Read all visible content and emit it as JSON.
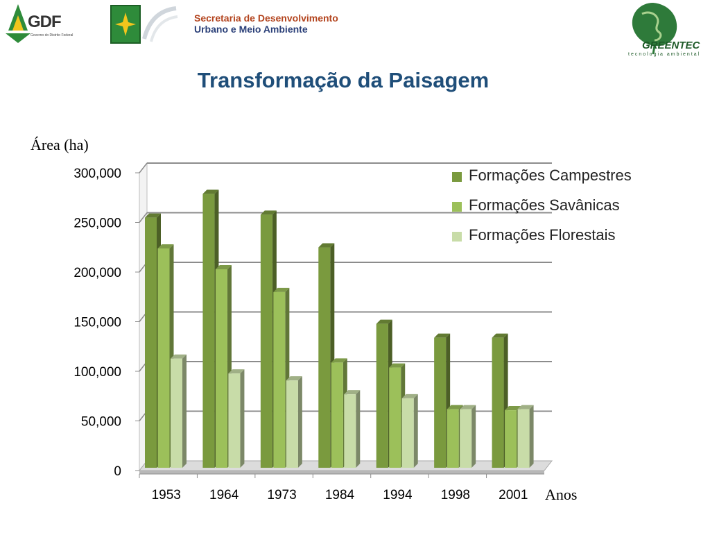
{
  "header": {
    "gdf_logo_text": "GDF",
    "gdf_logo_subtext": "Governo do Distrito Federal",
    "secretaria_line1": "Secretaria de  Desenvolvimento",
    "secretaria_line2": "Urbano e Meio Ambiente",
    "greentec_logo_text": "GREENTEC",
    "greentec_tagline": "tecnologia ambiental"
  },
  "slide": {
    "title": "Transformação da Paisagem"
  },
  "colors": {
    "campestres": "#7a9a3e",
    "savanicas": "#9cc05a",
    "florestais": "#c8dca8",
    "title": "#1f4e79",
    "grid": "#8c8c8c"
  },
  "chart_data": {
    "type": "bar",
    "title": "",
    "ylabel": "Área (ha)",
    "xlabel": "Anos",
    "ylim": [
      0,
      300000
    ],
    "yticks": [
      "0",
      "50,000",
      "100,000",
      "150,000",
      "200,000",
      "250,000",
      "300,000"
    ],
    "grid": true,
    "legend_position": "top-right",
    "categories": [
      "1953",
      "1964",
      "1973",
      "1984",
      "1994",
      "1998",
      "2001"
    ],
    "series": [
      {
        "name": "Formações Campestres",
        "values": [
          252000,
          276000,
          255000,
          222000,
          145000,
          131000,
          131000
        ]
      },
      {
        "name": "Formações Savânicas",
        "values": [
          221000,
          200000,
          177000,
          106000,
          101000,
          59000,
          58000
        ]
      },
      {
        "name": "Formações Florestais",
        "values": [
          110000,
          95000,
          88000,
          74000,
          70000,
          59000,
          59000
        ]
      }
    ]
  }
}
